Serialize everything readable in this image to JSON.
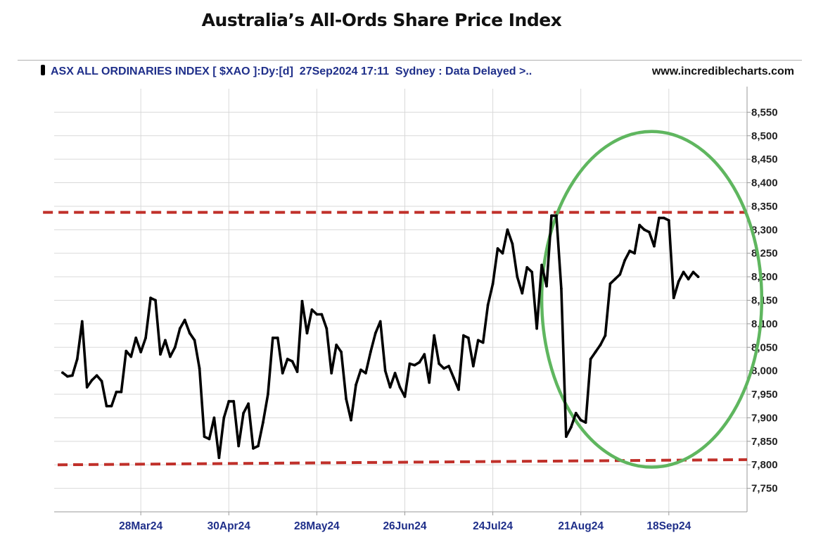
{
  "page": {
    "title": "Australia’s All-Ords Share Price Index"
  },
  "header": {
    "instrument": "ASX ALL ORDINARIES INDEX [ $XAO ]:Dy:[d]  27Sep2024 17:11  Sydney : Data Delayed >..",
    "source": "www.incrediblecharts.com"
  },
  "colors": {
    "price_line": "#000000",
    "grid": "#d9d9d9",
    "header_text": "#1f2f8a",
    "resistance": "#c0302a",
    "ellipse": "#5fb65f"
  },
  "chart_data": {
    "type": "line",
    "title": "Australia’s All-Ords Share Price Index",
    "xlabel": "",
    "ylabel": "",
    "ylim": [
      7700,
      8600
    ],
    "xlim": [
      0,
      141
    ],
    "y_ticks": [
      7750,
      7800,
      7850,
      7900,
      7950,
      8000,
      8050,
      8100,
      8150,
      8200,
      8250,
      8300,
      8350,
      8400,
      8450,
      8500,
      8550
    ],
    "x_ticks": [
      {
        "label": "28Mar24",
        "x": 17
      },
      {
        "label": "30Apr24",
        "x": 35
      },
      {
        "label": "28May24",
        "x": 53
      },
      {
        "label": "26Jun24",
        "x": 71
      },
      {
        "label": "24Jul24",
        "x": 89
      },
      {
        "label": "21Aug24",
        "x": 107
      },
      {
        "label": "18Sep24",
        "x": 125
      }
    ],
    "series": [
      {
        "name": "$XAO daily close",
        "x": [
          1,
          2,
          3,
          4,
          5,
          6,
          7,
          8,
          9,
          10,
          11,
          12,
          13,
          14,
          15,
          16,
          17,
          18,
          19,
          20,
          21,
          22,
          23,
          24,
          25,
          26,
          27,
          28,
          29,
          30,
          31,
          32,
          33,
          34,
          35,
          36,
          37,
          38,
          39,
          40,
          41,
          42,
          43,
          44,
          45,
          46,
          47,
          48,
          49,
          50,
          51,
          52,
          53,
          54,
          55,
          56,
          57,
          58,
          59,
          60,
          61,
          62,
          63,
          64,
          65,
          66,
          67,
          68,
          69,
          70,
          71,
          72,
          73,
          74,
          75,
          76,
          77,
          78,
          79,
          80,
          81,
          82,
          83,
          84,
          85,
          86,
          87,
          88,
          89,
          90,
          91,
          92,
          93,
          94,
          95,
          96,
          97,
          98,
          99,
          100,
          101,
          102,
          103,
          104,
          105,
          106,
          107,
          108,
          109,
          110,
          111,
          112,
          113,
          114,
          115,
          116,
          117,
          118,
          119,
          120,
          121,
          122,
          123,
          124,
          125,
          126,
          127,
          128,
          129,
          130,
          131
        ],
        "values": [
          7996,
          7988,
          7990,
          8025,
          8105,
          7965,
          7980,
          7990,
          7978,
          7925,
          7925,
          7955,
          7955,
          8042,
          8030,
          8070,
          8040,
          8070,
          8155,
          8150,
          8035,
          8065,
          8030,
          8050,
          8090,
          8108,
          8080,
          8065,
          8005,
          7860,
          7855,
          7900,
          7815,
          7900,
          7935,
          7935,
          7840,
          7910,
          7930,
          7835,
          7840,
          7890,
          7950,
          8070,
          8070,
          7995,
          8025,
          8020,
          7998,
          8148,
          8080,
          8130,
          8120,
          8120,
          8090,
          7995,
          8055,
          8040,
          7940,
          7895,
          7970,
          8002,
          7995,
          8040,
          8080,
          8105,
          8000,
          7965,
          7995,
          7965,
          7945,
          8015,
          8012,
          8018,
          8035,
          7975,
          8075,
          8015,
          8005,
          8010,
          7985,
          7960,
          8075,
          8070,
          8010,
          8065,
          8060,
          8140,
          8185,
          8260,
          8250,
          8300,
          8270,
          8200,
          8165,
          8220,
          8210,
          8090,
          8225,
          8180,
          8330,
          8330,
          8175,
          7860,
          7880,
          7910,
          7895,
          7890,
          8025,
          8040,
          8055,
          8075,
          8185,
          8195,
          8205,
          8235,
          8255,
          8250,
          8310,
          8300,
          8295,
          8265,
          8325,
          8325,
          8320,
          8155,
          8190,
          8210,
          8195,
          8210,
          8200
        ]
      }
    ],
    "annotations": [
      {
        "type": "resistance-line",
        "from": {
          "x": -3,
          "y": 8337
        },
        "to": {
          "x": 141,
          "y": 8337
        }
      },
      {
        "type": "support-line",
        "from": {
          "x": 0,
          "y": 7800
        },
        "to": {
          "x": 141,
          "y": 7811
        }
      },
      {
        "type": "highlight-ellipse",
        "center": {
          "x": 121.5,
          "y": 8152
        },
        "radius_x": 22.5,
        "radius_y": 357
      }
    ]
  }
}
